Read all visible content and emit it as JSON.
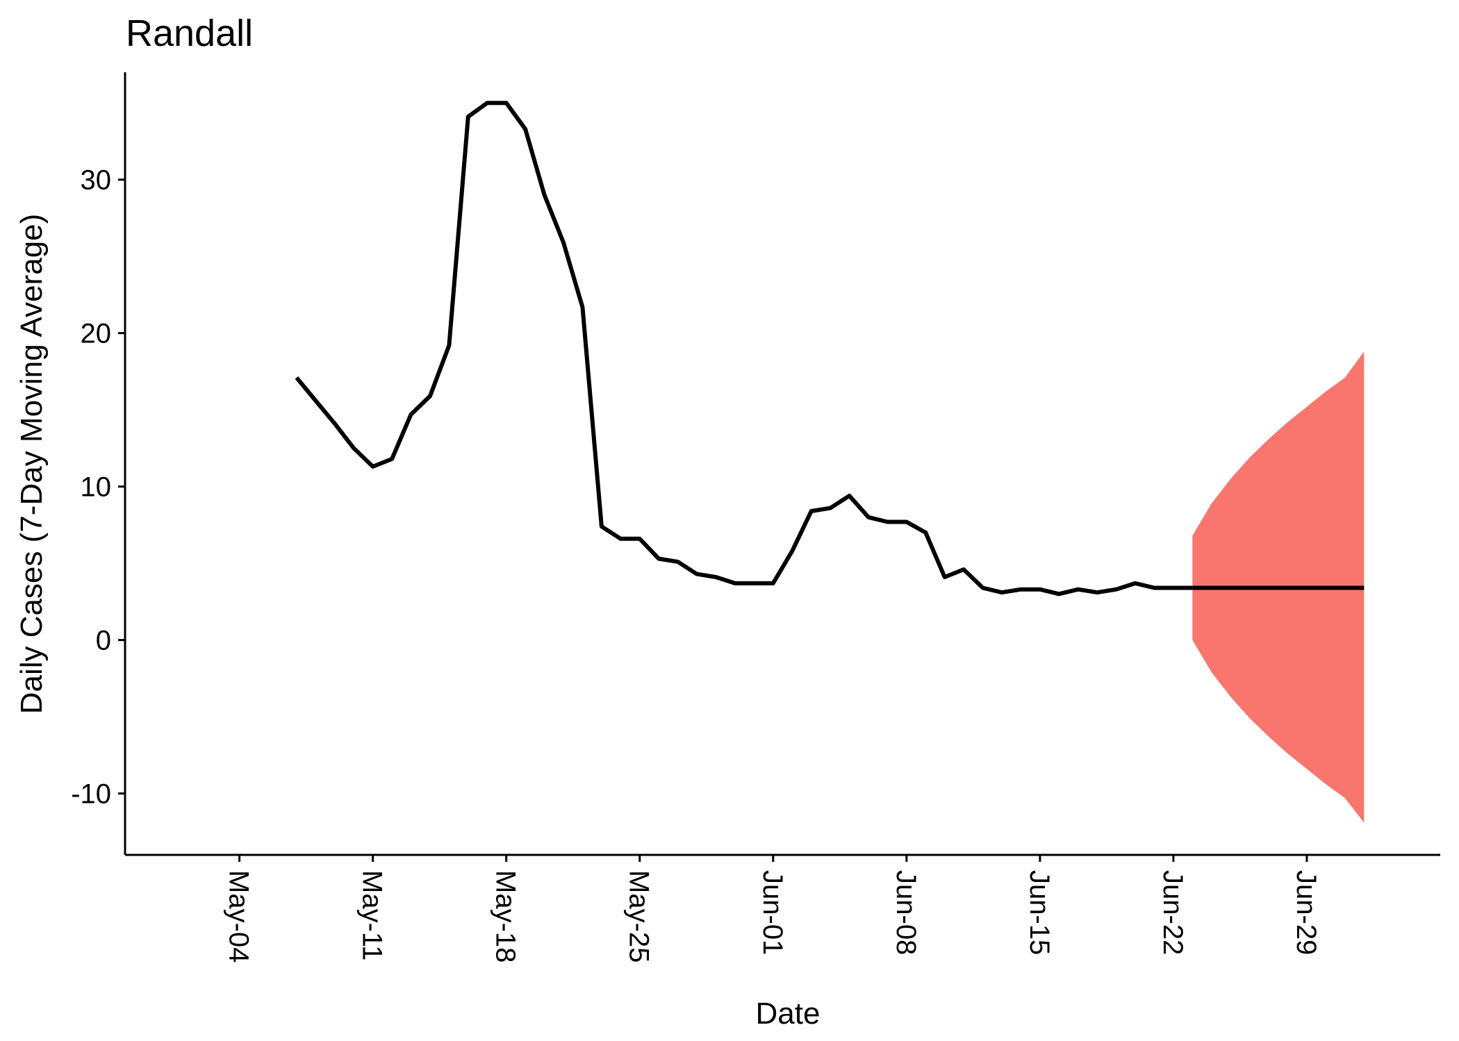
{
  "chart_data": {
    "type": "line",
    "title": "Randall",
    "xlabel": "Date",
    "ylabel": "Daily Cases (7-Day Moving Average)",
    "x_ticks": [
      "May-04",
      "May-11",
      "May-18",
      "May-25",
      "Jun-01",
      "Jun-08",
      "Jun-15",
      "Jun-22",
      "Jun-29"
    ],
    "y_ticks": [
      -10,
      0,
      10,
      20,
      30
    ],
    "ylim": [
      -14,
      37
    ],
    "xlim": [
      "2020-04-28",
      "2020-07-06"
    ],
    "grid": false,
    "series": [
      {
        "role": "observed",
        "color": "#000000",
        "x": [
          "2020-05-07",
          "2020-05-08",
          "2020-05-09",
          "2020-05-10",
          "2020-05-11",
          "2020-05-12",
          "2020-05-13",
          "2020-05-14",
          "2020-05-15",
          "2020-05-16",
          "2020-05-17",
          "2020-05-18",
          "2020-05-19",
          "2020-05-20",
          "2020-05-21",
          "2020-05-22",
          "2020-05-23",
          "2020-05-24",
          "2020-05-25",
          "2020-05-26",
          "2020-05-27",
          "2020-05-28",
          "2020-05-29",
          "2020-05-30",
          "2020-05-31",
          "2020-06-01",
          "2020-06-02",
          "2020-06-03",
          "2020-06-04",
          "2020-06-05",
          "2020-06-06",
          "2020-06-07",
          "2020-06-08",
          "2020-06-09",
          "2020-06-10",
          "2020-06-11",
          "2020-06-12",
          "2020-06-13",
          "2020-06-14",
          "2020-06-15",
          "2020-06-16",
          "2020-06-17",
          "2020-06-18",
          "2020-06-19",
          "2020-06-20",
          "2020-06-21",
          "2020-06-22",
          "2020-06-23"
        ],
        "y": [
          17.1,
          15.6,
          14.1,
          12.5,
          11.3,
          11.8,
          14.7,
          15.9,
          19.2,
          34.1,
          35.0,
          35.0,
          33.3,
          29.0,
          25.9,
          21.7,
          7.4,
          6.6,
          6.6,
          5.3,
          5.1,
          4.3,
          4.1,
          3.7,
          3.7,
          3.7,
          5.8,
          8.4,
          8.6,
          9.4,
          8.0,
          7.7,
          7.7,
          7.0,
          4.1,
          4.6,
          3.4,
          3.1,
          3.3,
          3.3,
          3.0,
          3.3,
          3.1,
          3.3,
          3.7,
          3.4,
          3.4,
          3.4
        ]
      },
      {
        "role": "forecast",
        "color": "#000000",
        "x": [
          "2020-06-23",
          "2020-07-02"
        ],
        "y": [
          3.4,
          3.4
        ]
      }
    ],
    "forecast_band": {
      "color": "#F8766D",
      "x": [
        "2020-06-23",
        "2020-06-24",
        "2020-06-25",
        "2020-06-26",
        "2020-06-27",
        "2020-06-28",
        "2020-06-29",
        "2020-06-30",
        "2020-07-01",
        "2020-07-02"
      ],
      "lower": [
        0.0,
        -2.1,
        -3.7,
        -5.1,
        -6.3,
        -7.4,
        -8.4,
        -9.4,
        -10.3,
        -11.9
      ],
      "upper": [
        6.8,
        8.9,
        10.5,
        11.9,
        13.1,
        14.2,
        15.2,
        16.2,
        17.1,
        18.8
      ]
    }
  }
}
